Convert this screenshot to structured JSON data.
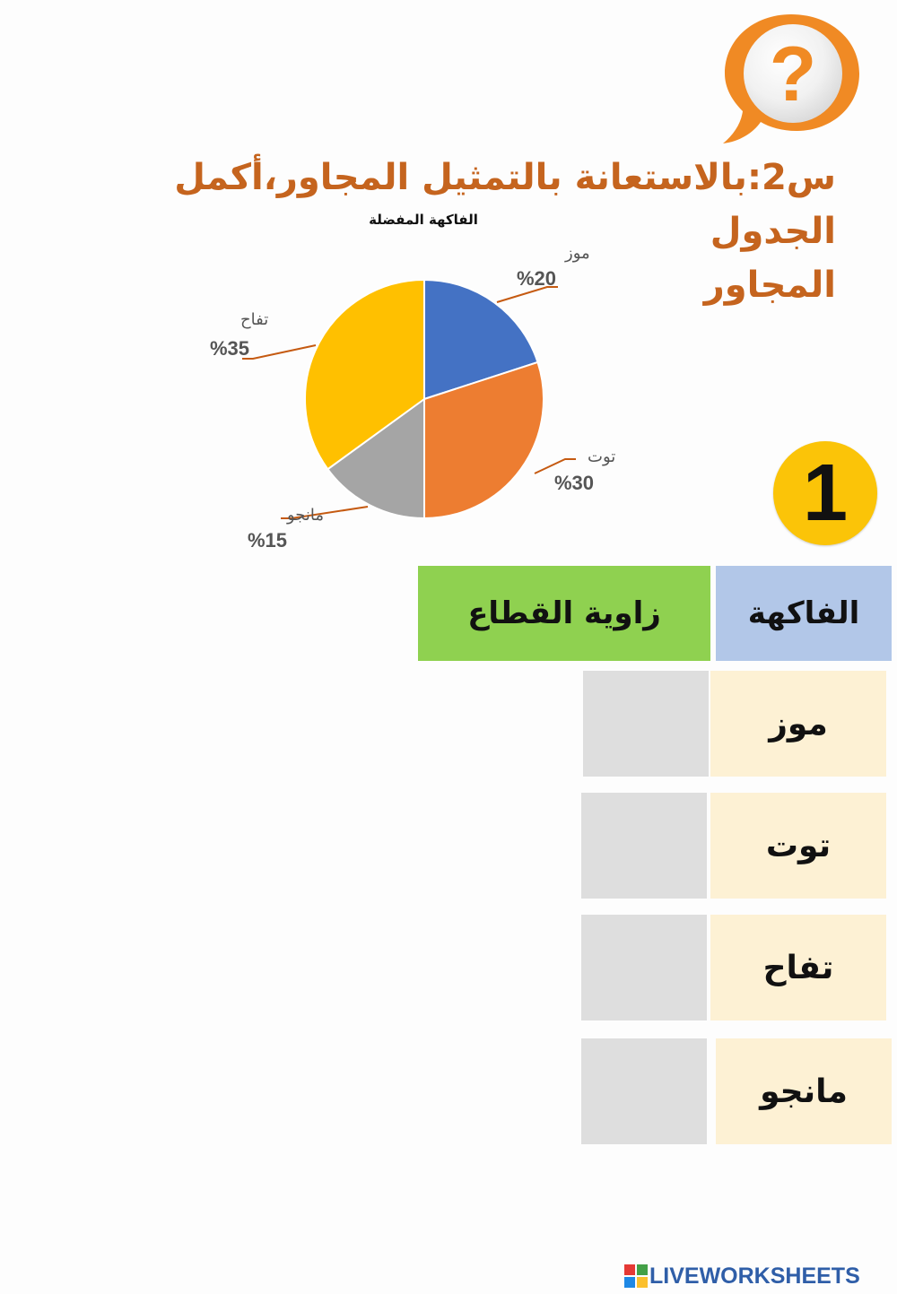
{
  "question": {
    "line1": "س2:بالاستعانة بالتمثيل المجاور،أكمل الجدول",
    "line2": "المجاور"
  },
  "icons": {
    "question_bubble": "question-mark-speech-bubble-icon"
  },
  "chart_data": {
    "type": "pie",
    "title": "الفاكهة المفضلة",
    "categories": [
      "موز",
      "توت",
      "مانجو",
      "تفاح"
    ],
    "values": [
      20,
      30,
      15,
      35
    ],
    "value_labels": [
      "%20",
      "%30",
      "%15",
      "%35"
    ],
    "colors": [
      "#4472c4",
      "#ed7d31",
      "#a5a5a5",
      "#ffc000"
    ],
    "label_color": "#555555",
    "leader_color": "#c55a11"
  },
  "badge": {
    "number": "1"
  },
  "table": {
    "header_fruit": "الفاكهة",
    "header_angle": "زاوية القطاع",
    "rows": [
      {
        "fruit": "موز",
        "answer": ""
      },
      {
        "fruit": "توت",
        "answer": ""
      },
      {
        "fruit": "تفاح",
        "answer": ""
      },
      {
        "fruit": "مانجو",
        "answer": ""
      }
    ]
  },
  "footer": {
    "brand": "LIVEWORKSHEETS"
  }
}
